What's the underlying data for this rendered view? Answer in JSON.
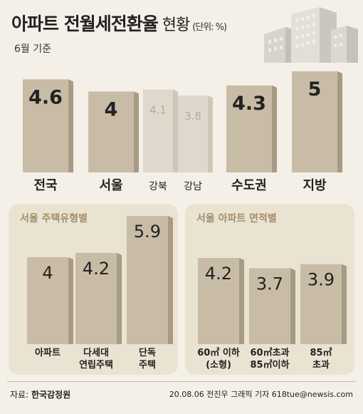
{
  "header": {
    "title": "아파트 전월세전환율",
    "title_suffix": "현황",
    "unit": "(단위: %)",
    "subtitle": "6월 기준"
  },
  "colors": {
    "bar_main": "#c9bca6",
    "bar_main_shade": "#a89a83",
    "bar_light": "#e0d8cc",
    "bar_light_shade": "#d0c6b7",
    "panel_bg": "#ebe3d2",
    "panel_title": "#a38d6a",
    "page_bg": "#f4f0e8"
  },
  "chart_data": [
    {
      "type": "bar",
      "title": "",
      "categories": [
        "전국",
        "서울",
        "강북",
        "강남",
        "수도권",
        "지방"
      ],
      "values": [
        4.6,
        4.0,
        4.1,
        3.8,
        4.3,
        5.0
      ],
      "value_labels": [
        "4.6",
        "4",
        "4.1",
        "3.8",
        "4.3",
        "5"
      ],
      "highlight": [
        true,
        true,
        false,
        false,
        true,
        true
      ],
      "ylim": [
        0,
        5
      ]
    },
    {
      "type": "bar",
      "title": "서울 주택유형별",
      "categories": [
        "아파트",
        "다세대\n연립주택",
        "단독\n주택"
      ],
      "values": [
        4.0,
        4.2,
        5.9
      ],
      "value_labels": [
        "4",
        "4.2",
        "5.9"
      ],
      "ylim": [
        0,
        5.9
      ]
    },
    {
      "type": "bar",
      "title": "서울 아파트 면적별",
      "categories": [
        "60㎡ 이하\n(소형)",
        "60㎡초과\n85㎡이하",
        "85㎡\n초과"
      ],
      "values": [
        4.2,
        3.7,
        3.9
      ],
      "value_labels": [
        "4.2",
        "3.7",
        "3.9"
      ],
      "ylim": [
        0,
        4.2
      ]
    }
  ],
  "footer": {
    "source_label": "자료:",
    "source": "한국감정원",
    "credit": "20.08.06 전진우 그래픽 기자 618tue@newsis.com"
  }
}
